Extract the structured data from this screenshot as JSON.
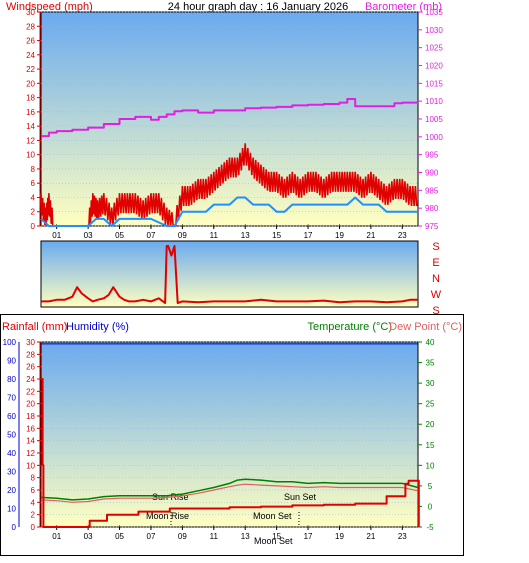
{
  "header": {
    "left_title": "Windspeed (mph)",
    "center_title": "24 hour graph day : 16 January 2026",
    "right_title": "Barometer (mb)"
  },
  "colors": {
    "wind": "#e00000",
    "gust": "#e00000",
    "avg_wind": "#1e90ff",
    "barometer": "#e020e0",
    "direction": "#e00000",
    "rain": "#e00000",
    "humidity": "#0000cc",
    "temperature": "#008000",
    "dew_point": "#e06060",
    "bg_top": "#6aaaf0",
    "bg_bottom": "#ffffc0"
  },
  "x_ticks": [
    "01",
    "03",
    "05",
    "07",
    "09",
    "11",
    "13",
    "15",
    "17",
    "19",
    "21",
    "23"
  ],
  "direction_labels": [
    "S",
    "E",
    "N",
    "W",
    "S"
  ],
  "lower": {
    "left_title_rain": "Rainfall (mm)",
    "left_title_humidity": "Humidity (%)",
    "right_title_temp": "Temperature (°C)",
    "right_title_dew": "Dew Point (°C)",
    "annotations": {
      "sun_rise": "Sun Rise",
      "sun_set": "Sun Set",
      "moon_rise": "Moon Rise",
      "moon_set_1": "Moon Set",
      "moon_set_2": "Moon Set"
    }
  },
  "chart_data": [
    {
      "type": "line",
      "title": "24 hour graph day : 16 January 2026",
      "ylabel": "Windspeed (mph)",
      "ylabel_right": "Barometer (mb)",
      "x_range": [
        0,
        24
      ],
      "ylim": [
        0,
        30
      ],
      "ylim_right": [
        975,
        1035
      ],
      "y_ticks": [
        0,
        2,
        4,
        6,
        8,
        10,
        12,
        14,
        16,
        18,
        20,
        22,
        24,
        26,
        28,
        30
      ],
      "y_ticks_right": [
        975,
        980,
        985,
        990,
        995,
        1000,
        1005,
        1010,
        1015,
        1020,
        1025,
        1030,
        1035
      ],
      "series": [
        {
          "name": "Windspeed",
          "axis": "left",
          "x": [
            0,
            0.3,
            0.5,
            0.8,
            1,
            2,
            3,
            3.3,
            3.6,
            4,
            4.5,
            5,
            5.5,
            6,
            6.5,
            7,
            7.5,
            8,
            8.5,
            9,
            9.5,
            10,
            10.5,
            11,
            11.5,
            12,
            12.5,
            13,
            13.5,
            14,
            14.5,
            15,
            15.5,
            16,
            16.5,
            17,
            17.5,
            18,
            18.5,
            19,
            19.5,
            20,
            20.5,
            21,
            21.5,
            22,
            22.5,
            23,
            23.5,
            24
          ],
          "y": [
            3,
            1,
            3,
            0,
            0,
            0,
            0,
            3,
            2,
            3,
            1,
            3,
            3,
            3,
            2,
            3,
            3,
            1,
            0,
            4,
            4,
            5,
            5,
            6,
            7,
            8,
            8,
            10,
            8,
            7,
            6,
            6,
            5,
            6,
            5,
            6,
            6,
            5,
            6,
            6,
            6,
            6,
            5,
            6,
            5,
            4,
            5,
            5,
            4,
            4
          ]
        },
        {
          "name": "Average Wind",
          "axis": "left",
          "x": [
            0,
            0.5,
            1,
            2,
            3,
            3.5,
            4,
            4.5,
            5,
            6,
            7,
            8,
            8.5,
            9,
            9.5,
            10,
            10.5,
            11,
            11.5,
            12,
            12.5,
            13,
            13.5,
            14,
            14.5,
            15,
            15.5,
            16,
            16.5,
            17,
            17.5,
            18,
            18.5,
            19,
            19.5,
            20,
            20.5,
            21,
            21.5,
            22,
            22.5,
            23,
            23.5,
            24
          ],
          "y": [
            1,
            0,
            0,
            0,
            0,
            1,
            1,
            0,
            1,
            1,
            1,
            0,
            0,
            2,
            2,
            2,
            2,
            3,
            3,
            3,
            4,
            4,
            3,
            3,
            3,
            2,
            2,
            3,
            3,
            3,
            3,
            3,
            3,
            3,
            3,
            4,
            3,
            3,
            3,
            2,
            2,
            2,
            2,
            2
          ]
        },
        {
          "name": "Barometer",
          "axis": "right",
          "x": [
            0,
            0.5,
            1,
            1.5,
            2,
            3,
            4,
            5,
            6,
            7,
            7.5,
            8,
            8.5,
            9,
            10,
            11,
            12,
            13,
            14,
            15,
            16,
            17,
            18,
            19,
            19.5,
            20,
            21,
            22,
            22.5,
            23,
            24
          ],
          "y": [
            1000.2,
            1001.2,
            1001.6,
            1001.6,
            1002,
            1002.6,
            1003.6,
            1005,
            1005.6,
            1004.8,
            1005.6,
            1006.3,
            1007.2,
            1007.4,
            1006.8,
            1007.4,
            1007.4,
            1008,
            1008.2,
            1008.4,
            1008.8,
            1009,
            1009.2,
            1009.6,
            1010.6,
            1008.6,
            1008.6,
            1008.6,
            1009.4,
            1009.6,
            1009.6
          ]
        }
      ]
    },
    {
      "type": "line",
      "title": "",
      "ylabel": "Wind Direction",
      "y_categories": [
        "S",
        "E",
        "N",
        "W",
        "S"
      ],
      "ylim": [
        0,
        360
      ],
      "series": [
        {
          "name": "Direction",
          "x": [
            0,
            0.5,
            1,
            1.5,
            2,
            2.3,
            2.6,
            3,
            3.3,
            3.6,
            4,
            4.3,
            4.6,
            5,
            5.3,
            5.6,
            6,
            6.5,
            7,
            7.5,
            7.9,
            8,
            8.1,
            8.3,
            8.5,
            8.7,
            9,
            10,
            11,
            12,
            13,
            14,
            15,
            16,
            17,
            18,
            19,
            20,
            21,
            22,
            23,
            23.5,
            24
          ],
          "y": [
            10,
            10,
            20,
            20,
            40,
            100,
            60,
            30,
            10,
            20,
            30,
            50,
            100,
            40,
            20,
            10,
            10,
            20,
            10,
            30,
            0,
            360,
            360,
            300,
            360,
            0,
            10,
            5,
            10,
            10,
            10,
            20,
            10,
            10,
            10,
            15,
            5,
            10,
            10,
            5,
            10,
            20,
            20
          ]
        }
      ]
    },
    {
      "type": "line",
      "title": "",
      "ylabel": "Rainfall (mm)",
      "ylabel_2": "Humidity (%)",
      "ylabel_right": "Temperature (°C)",
      "ylabel_right_2": "Dew Point (°C)",
      "ylim_rain": [
        0,
        30
      ],
      "ylim_humidity": [
        0,
        100
      ],
      "ylim_temp": [
        -5,
        40
      ],
      "y_ticks_rain": [
        0,
        2,
        4,
        6,
        8,
        10,
        12,
        14,
        16,
        18,
        20,
        22,
        24,
        26,
        28,
        30
      ],
      "y_ticks_humidity": [
        0,
        10,
        20,
        30,
        40,
        50,
        60,
        70,
        80,
        90,
        100
      ],
      "y_ticks_temp": [
        -5,
        0,
        5,
        10,
        15,
        20,
        25,
        30,
        35,
        40
      ],
      "series": [
        {
          "name": "Humidity",
          "axis": "humidity",
          "x": [
            0,
            24
          ],
          "y": [
            99,
            99
          ]
        },
        {
          "name": "Rainfall",
          "axis": "rain",
          "x": [
            0,
            0.05,
            0.1,
            0.15,
            2.9,
            3.1,
            4,
            4.2,
            6,
            6.2,
            8,
            8.2,
            10,
            12,
            14,
            16,
            18,
            20,
            21.5,
            22,
            22.4,
            23.2,
            23.4,
            24,
            24.05
          ],
          "y": [
            24,
            24,
            10,
            0,
            0,
            1,
            1,
            2,
            2,
            2.5,
            2.5,
            3,
            3,
            3.2,
            3.3,
            3.5,
            3.6,
            3.8,
            3.8,
            5,
            5,
            7,
            7.5,
            7.5,
            0
          ]
        },
        {
          "name": "Temperature",
          "axis": "temp",
          "x": [
            0,
            1,
            2,
            3,
            4,
            5,
            6,
            7,
            8,
            9,
            10,
            11,
            12,
            12.5,
            13,
            14,
            15,
            16,
            17,
            18,
            19,
            20,
            21,
            22,
            23,
            24
          ],
          "y": [
            2.2,
            2.0,
            1.6,
            1.8,
            2.4,
            2.6,
            2.6,
            2.6,
            2.6,
            3.0,
            3.8,
            4.6,
            5.6,
            6.4,
            6.6,
            6.4,
            6.0,
            6.0,
            5.6,
            5.8,
            5.6,
            5.6,
            5.6,
            5.6,
            5.6,
            4.6
          ]
        },
        {
          "name": "Dew Point",
          "axis": "temp",
          "x": [
            0,
            1,
            2,
            3,
            4,
            5,
            6,
            7,
            8,
            9,
            10,
            11,
            12,
            12.5,
            13,
            14,
            15,
            16,
            17,
            18,
            19,
            20,
            21,
            22,
            23,
            24
          ],
          "y": [
            1.6,
            1.4,
            1.0,
            1.2,
            1.8,
            2.0,
            2.0,
            2.0,
            2.2,
            2.6,
            3.2,
            4.0,
            4.8,
            5.2,
            5.4,
            5.2,
            5.0,
            4.8,
            4.6,
            4.8,
            4.6,
            4.6,
            4.6,
            4.6,
            4.6,
            3.8
          ]
        }
      ]
    }
  ]
}
